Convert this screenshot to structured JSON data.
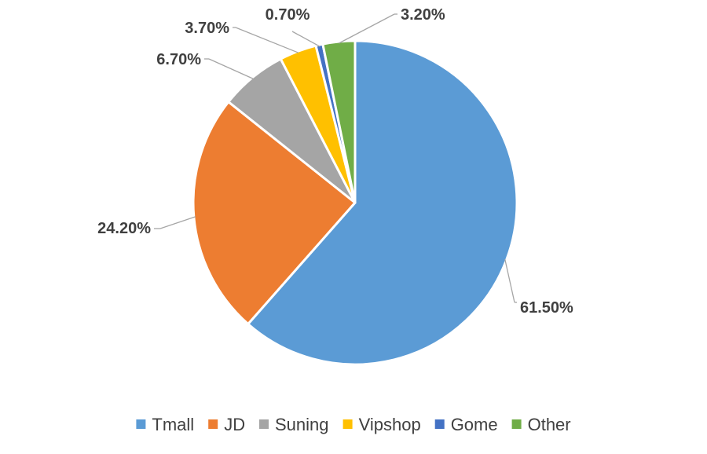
{
  "chart_data": {
    "type": "pie",
    "title": "",
    "legend_position": "bottom",
    "slices": [
      {
        "name": "Tmall",
        "value": 61.5,
        "label": "61.50%",
        "color": "#5b9bd5"
      },
      {
        "name": "JD",
        "value": 24.2,
        "label": "24.20%",
        "color": "#ed7d31"
      },
      {
        "name": "Suning",
        "value": 6.7,
        "label": "6.70%",
        "color": "#a5a5a5"
      },
      {
        "name": "Vipshop",
        "value": 3.7,
        "label": "3.70%",
        "color": "#ffc000"
      },
      {
        "name": "Gome",
        "value": 0.7,
        "label": "0.70%",
        "color": "#4472c4"
      },
      {
        "name": "Other",
        "value": 3.2,
        "label": "3.20%",
        "color": "#70ad47"
      }
    ]
  }
}
